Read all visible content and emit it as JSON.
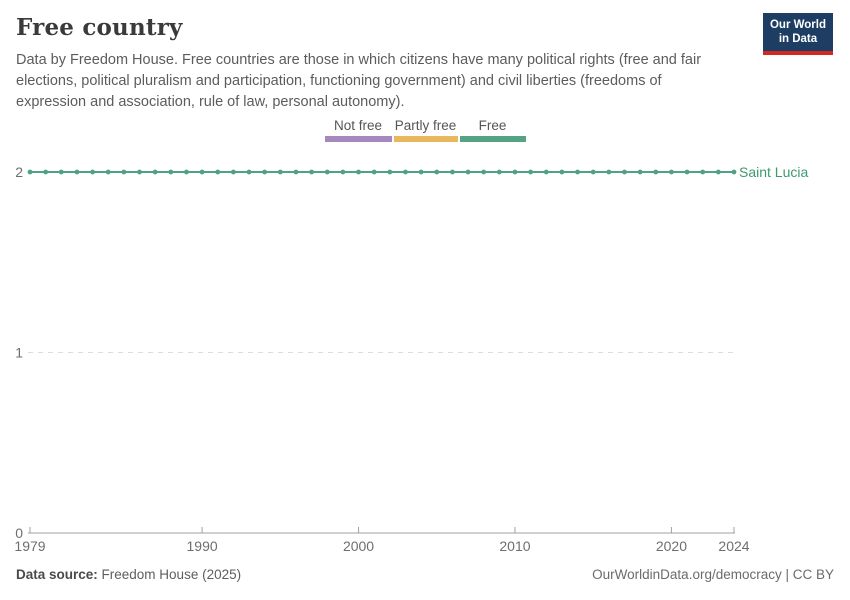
{
  "header": {
    "title": "Free country",
    "subtitle": "Data by Freedom House. Free countries are those in which citizens have many political rights (free and fair elections, political pluralism and participation, functioning government) and civil liberties (freedoms of expression and association, rule of law, personal autonomy)."
  },
  "logo": {
    "line1": "Our World",
    "line2": "in Data",
    "bg_color": "#1d3d63",
    "accent_color": "#d22a20"
  },
  "legend": {
    "items": [
      {
        "label": "Not free",
        "color": "#a687be"
      },
      {
        "label": "Partly free",
        "color": "#e9b85c"
      },
      {
        "label": "Free",
        "color": "#55a285"
      }
    ]
  },
  "chart_data": {
    "type": "line",
    "title": "Free country",
    "x": [
      1979,
      1980,
      1981,
      1982,
      1983,
      1984,
      1985,
      1986,
      1987,
      1988,
      1989,
      1990,
      1991,
      1992,
      1993,
      1994,
      1995,
      1996,
      1997,
      1998,
      1999,
      2000,
      2001,
      2002,
      2003,
      2004,
      2005,
      2006,
      2007,
      2008,
      2009,
      2010,
      2011,
      2012,
      2013,
      2014,
      2015,
      2016,
      2017,
      2018,
      2019,
      2020,
      2021,
      2022,
      2023,
      2024
    ],
    "series": [
      {
        "name": "Saint Lucia",
        "color": "#51a185",
        "label_color": "#3d9a70",
        "values": [
          2,
          2,
          2,
          2,
          2,
          2,
          2,
          2,
          2,
          2,
          2,
          2,
          2,
          2,
          2,
          2,
          2,
          2,
          2,
          2,
          2,
          2,
          2,
          2,
          2,
          2,
          2,
          2,
          2,
          2,
          2,
          2,
          2,
          2,
          2,
          2,
          2,
          2,
          2,
          2,
          2,
          2,
          2,
          2,
          2,
          2
        ]
      }
    ],
    "xlim": [
      1979,
      2024
    ],
    "ylim": [
      0,
      2
    ],
    "x_ticks": [
      1979,
      1990,
      2000,
      2010,
      2020,
      2024
    ],
    "y_ticks": [
      0,
      1,
      2
    ],
    "grid": "horizontal-dashed",
    "legend_position": "top-center",
    "axis_color": "#a1a1a1",
    "grid_color": "#dcdcdc",
    "tick_text_color": "#6e6e6e"
  },
  "footer": {
    "source_label": "Data source:",
    "source_value": " Freedom House (2025)",
    "right_text": "OurWorldinData.org/democracy | CC BY"
  }
}
